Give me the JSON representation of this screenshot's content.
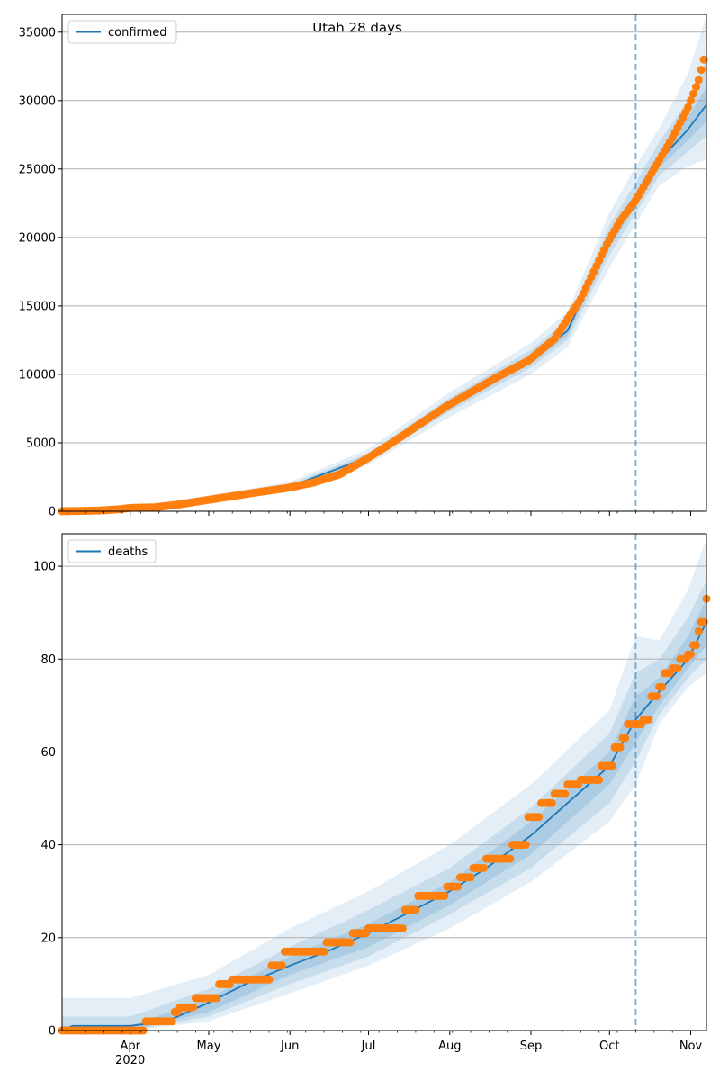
{
  "title": "Utah 28 days",
  "colors": {
    "line": "#1f77b4",
    "points": "#ff7f0e",
    "band": "#1f77b4",
    "grid": "#b0b0b0",
    "forecast_line": "#1f77b4"
  },
  "x_axis": {
    "month_ticks": [
      {
        "label": "Apr",
        "sub": "2020"
      },
      {
        "label": "May",
        "sub": ""
      },
      {
        "label": "Jun",
        "sub": ""
      },
      {
        "label": "Jul",
        "sub": ""
      },
      {
        "label": "Aug",
        "sub": ""
      },
      {
        "label": "Sep",
        "sub": ""
      },
      {
        "label": "Oct",
        "sub": ""
      },
      {
        "label": "Nov",
        "sub": ""
      }
    ],
    "start_date": "2020-03-06",
    "end_date": "2020-11-07",
    "forecast_start_date": "2020-10-11"
  },
  "chart_data": [
    {
      "type": "line",
      "legend": "confirmed",
      "legend_position": "upper-left",
      "grid": "horizontal",
      "ylim": [
        0,
        36300
      ],
      "yticks": [
        0,
        5000,
        10000,
        15000,
        20000,
        25000,
        30000,
        35000
      ],
      "observed_points": [
        [
          "2020-03-06",
          0
        ],
        [
          "2020-03-20",
          50
        ],
        [
          "2020-03-28",
          150
        ],
        [
          "2020-04-01",
          250
        ],
        [
          "2020-04-10",
          280
        ],
        [
          "2020-04-20",
          500
        ],
        [
          "2020-04-28",
          750
        ],
        [
          "2020-05-10",
          1100
        ],
        [
          "2020-05-20",
          1400
        ],
        [
          "2020-05-31",
          1700
        ],
        [
          "2020-06-10",
          2100
        ],
        [
          "2020-06-20",
          2700
        ],
        [
          "2020-06-30",
          3800
        ],
        [
          "2020-07-10",
          5000
        ],
        [
          "2020-07-20",
          6300
        ],
        [
          "2020-07-31",
          7700
        ],
        [
          "2020-08-10",
          8800
        ],
        [
          "2020-08-20",
          9900
        ],
        [
          "2020-08-31",
          11000
        ],
        [
          "2020-09-10",
          12600
        ],
        [
          "2020-09-20",
          15500
        ],
        [
          "2020-09-30",
          19500
        ],
        [
          "2020-10-05",
          21200
        ],
        [
          "2020-10-11",
          22700
        ],
        [
          "2020-10-18",
          25000
        ],
        [
          "2020-10-25",
          27300
        ],
        [
          "2020-10-31",
          29500
        ],
        [
          "2020-11-04",
          31500
        ],
        [
          "2020-11-06",
          33000
        ]
      ],
      "model_line": [
        [
          "2020-03-06",
          0
        ],
        [
          "2020-04-01",
          230
        ],
        [
          "2020-05-01",
          900
        ],
        [
          "2020-06-01",
          1800
        ],
        [
          "2020-07-01",
          3950
        ],
        [
          "2020-08-01",
          7800
        ],
        [
          "2020-09-01",
          11100
        ],
        [
          "2020-09-15",
          13200
        ],
        [
          "2020-10-01",
          19800
        ],
        [
          "2020-10-11",
          22800
        ],
        [
          "2020-10-20",
          25600
        ],
        [
          "2020-10-31",
          27900
        ],
        [
          "2020-11-07",
          29700
        ]
      ],
      "bands": [
        {
          "lower": [
            [
              "2020-03-06",
              0
            ],
            [
              "2020-04-01",
              150
            ],
            [
              "2020-05-01",
              700
            ],
            [
              "2020-06-01",
              1500
            ],
            [
              "2020-07-01",
              3400
            ],
            [
              "2020-08-01",
              6900
            ],
            [
              "2020-09-01",
              10000
            ],
            [
              "2020-09-15",
              12000
            ],
            [
              "2020-10-01",
              17800
            ],
            [
              "2020-10-11",
              21000
            ],
            [
              "2020-10-20",
              23800
            ],
            [
              "2020-10-31",
              25200
            ],
            [
              "2020-11-07",
              25700
            ]
          ],
          "upper": [
            [
              "2020-03-06",
              0
            ],
            [
              "2020-04-01",
              350
            ],
            [
              "2020-05-01",
              1150
            ],
            [
              "2020-06-01",
              2150
            ],
            [
              "2020-07-01",
              4550
            ],
            [
              "2020-08-01",
              8700
            ],
            [
              "2020-09-01",
              12300
            ],
            [
              "2020-09-15",
              14600
            ],
            [
              "2020-10-01",
              21800
            ],
            [
              "2020-10-11",
              25200
            ],
            [
              "2020-10-20",
              28000
            ],
            [
              "2020-10-31",
              32000
            ],
            [
              "2020-11-07",
              36200
            ]
          ]
        },
        {
          "lower": [
            [
              "2020-03-06",
              0
            ],
            [
              "2020-04-01",
              190
            ],
            [
              "2020-05-01",
              800
            ],
            [
              "2020-06-01",
              1650
            ],
            [
              "2020-07-01",
              3650
            ],
            [
              "2020-08-01",
              7300
            ],
            [
              "2020-09-01",
              10500
            ],
            [
              "2020-09-15",
              12500
            ],
            [
              "2020-10-01",
              18700
            ],
            [
              "2020-10-11",
              21800
            ],
            [
              "2020-10-20",
              24500
            ],
            [
              "2020-10-31",
              26300
            ],
            [
              "2020-11-07",
              27400
            ]
          ],
          "upper": [
            [
              "2020-03-06",
              0
            ],
            [
              "2020-04-01",
              290
            ],
            [
              "2020-05-01",
              1030
            ],
            [
              "2020-06-01",
              1980
            ],
            [
              "2020-07-01",
              4250
            ],
            [
              "2020-08-01",
              8300
            ],
            [
              "2020-09-01",
              11800
            ],
            [
              "2020-09-15",
              14000
            ],
            [
              "2020-10-01",
              20900
            ],
            [
              "2020-10-11",
              24000
            ],
            [
              "2020-10-20",
              27000
            ],
            [
              "2020-10-31",
              30000
            ],
            [
              "2020-11-07",
              33000
            ]
          ]
        },
        {
          "lower": [
            [
              "2020-03-06",
              0
            ],
            [
              "2020-04-01",
              215
            ],
            [
              "2020-05-01",
              860
            ],
            [
              "2020-06-01",
              1730
            ],
            [
              "2020-07-01",
              3800
            ],
            [
              "2020-08-01",
              7550
            ],
            [
              "2020-09-01",
              10800
            ],
            [
              "2020-09-15",
              12850
            ],
            [
              "2020-10-01",
              19300
            ],
            [
              "2020-10-11",
              22300
            ],
            [
              "2020-10-20",
              25100
            ],
            [
              "2020-10-31",
              27100
            ],
            [
              "2020-11-07",
              28500
            ]
          ],
          "upper": [
            [
              "2020-03-06",
              0
            ],
            [
              "2020-04-01",
              250
            ],
            [
              "2020-05-01",
              950
            ],
            [
              "2020-06-01",
              1880
            ],
            [
              "2020-07-01",
              4100
            ],
            [
              "2020-08-01",
              8050
            ],
            [
              "2020-09-01",
              11400
            ],
            [
              "2020-09-15",
              13550
            ],
            [
              "2020-10-01",
              20300
            ],
            [
              "2020-10-11",
              23300
            ],
            [
              "2020-10-20",
              26200
            ],
            [
              "2020-10-31",
              28800
            ],
            [
              "2020-11-07",
              31000
            ]
          ]
        }
      ]
    },
    {
      "type": "line",
      "legend": "deaths",
      "legend_position": "upper-left",
      "grid": "horizontal",
      "ylim": [
        0,
        107
      ],
      "yticks": [
        0,
        20,
        40,
        60,
        80,
        100
      ],
      "observed_points": [
        [
          "2020-03-06",
          0
        ],
        [
          "2020-04-05",
          0
        ],
        [
          "2020-04-07",
          2
        ],
        [
          "2020-04-15",
          2
        ],
        [
          "2020-04-18",
          4
        ],
        [
          "2020-04-20",
          5
        ],
        [
          "2020-04-26",
          7
        ],
        [
          "2020-05-01",
          7
        ],
        [
          "2020-05-05",
          10
        ],
        [
          "2020-05-10",
          11
        ],
        [
          "2020-05-20",
          11
        ],
        [
          "2020-05-25",
          14
        ],
        [
          "2020-05-30",
          17
        ],
        [
          "2020-06-10",
          17
        ],
        [
          "2020-06-15",
          19
        ],
        [
          "2020-06-25",
          21
        ],
        [
          "2020-07-01",
          22
        ],
        [
          "2020-07-10",
          22
        ],
        [
          "2020-07-15",
          26
        ],
        [
          "2020-07-20",
          29
        ],
        [
          "2020-07-31",
          31
        ],
        [
          "2020-08-05",
          33
        ],
        [
          "2020-08-10",
          35
        ],
        [
          "2020-08-15",
          37
        ],
        [
          "2020-08-20",
          37
        ],
        [
          "2020-08-25",
          40
        ],
        [
          "2020-08-31",
          46
        ],
        [
          "2020-09-05",
          49
        ],
        [
          "2020-09-10",
          51
        ],
        [
          "2020-09-15",
          53
        ],
        [
          "2020-09-20",
          54
        ],
        [
          "2020-09-25",
          54
        ],
        [
          "2020-09-28",
          57
        ],
        [
          "2020-10-01",
          57
        ],
        [
          "2020-10-03",
          61
        ],
        [
          "2020-10-06",
          63
        ],
        [
          "2020-10-08",
          66
        ],
        [
          "2020-10-11",
          66
        ],
        [
          "2020-10-14",
          67
        ],
        [
          "2020-10-17",
          72
        ],
        [
          "2020-10-20",
          74
        ],
        [
          "2020-10-22",
          77
        ],
        [
          "2020-10-25",
          78
        ],
        [
          "2020-10-28",
          80
        ],
        [
          "2020-10-31",
          81
        ],
        [
          "2020-11-02",
          83
        ],
        [
          "2020-11-04",
          86
        ],
        [
          "2020-11-05",
          88
        ],
        [
          "2020-11-07",
          93
        ]
      ],
      "model_line": [
        [
          "2020-03-06",
          0
        ],
        [
          "2020-03-10",
          1
        ],
        [
          "2020-04-01",
          1
        ],
        [
          "2020-04-15",
          2
        ],
        [
          "2020-05-01",
          6
        ],
        [
          "2020-05-15",
          10
        ],
        [
          "2020-06-01",
          14
        ],
        [
          "2020-06-15",
          17
        ],
        [
          "2020-07-01",
          21
        ],
        [
          "2020-07-15",
          25
        ],
        [
          "2020-08-01",
          30
        ],
        [
          "2020-08-15",
          35
        ],
        [
          "2020-09-01",
          42
        ],
        [
          "2020-09-15",
          49
        ],
        [
          "2020-10-01",
          57
        ],
        [
          "2020-10-11",
          67
        ],
        [
          "2020-10-20",
          73
        ],
        [
          "2020-10-31",
          80
        ],
        [
          "2020-11-07",
          88
        ]
      ],
      "bands": [
        {
          "lower": [
            [
              "2020-03-06",
              0
            ],
            [
              "2020-04-01",
              0
            ],
            [
              "2020-05-01",
              2
            ],
            [
              "2020-06-01",
              8
            ],
            [
              "2020-07-01",
              14
            ],
            [
              "2020-08-01",
              22
            ],
            [
              "2020-09-01",
              32
            ],
            [
              "2020-10-01",
              45
            ],
            [
              "2020-10-11",
              53
            ],
            [
              "2020-10-20",
              66
            ],
            [
              "2020-10-31",
              74
            ],
            [
              "2020-11-07",
              77
            ]
          ],
          "upper": [
            [
              "2020-03-06",
              7
            ],
            [
              "2020-04-01",
              7
            ],
            [
              "2020-05-01",
              12
            ],
            [
              "2020-06-01",
              22
            ],
            [
              "2020-07-01",
              30
            ],
            [
              "2020-08-01",
              40
            ],
            [
              "2020-09-01",
              53
            ],
            [
              "2020-10-01",
              69
            ],
            [
              "2020-10-11",
              85
            ],
            [
              "2020-10-20",
              84
            ],
            [
              "2020-10-31",
              95
            ],
            [
              "2020-11-07",
              106
            ]
          ]
        },
        {
          "lower": [
            [
              "2020-03-06",
              0
            ],
            [
              "2020-04-01",
              0
            ],
            [
              "2020-05-01",
              3
            ],
            [
              "2020-06-01",
              10
            ],
            [
              "2020-07-01",
              16
            ],
            [
              "2020-08-01",
              25
            ],
            [
              "2020-09-01",
              35
            ],
            [
              "2020-10-01",
              49
            ],
            [
              "2020-10-11",
              58
            ],
            [
              "2020-10-20",
              68
            ],
            [
              "2020-10-31",
              76
            ],
            [
              "2020-11-07",
              80
            ]
          ],
          "upper": [
            [
              "2020-03-06",
              3
            ],
            [
              "2020-04-01",
              3
            ],
            [
              "2020-05-01",
              9
            ],
            [
              "2020-06-01",
              18
            ],
            [
              "2020-07-01",
              26
            ],
            [
              "2020-08-01",
              35
            ],
            [
              "2020-09-01",
              48
            ],
            [
              "2020-10-01",
              64
            ],
            [
              "2020-10-11",
              77
            ],
            [
              "2020-10-20",
              80
            ],
            [
              "2020-10-31",
              89
            ],
            [
              "2020-11-07",
              97
            ]
          ]
        },
        {
          "lower": [
            [
              "2020-03-06",
              0
            ],
            [
              "2020-04-01",
              0
            ],
            [
              "2020-05-01",
              4
            ],
            [
              "2020-06-01",
              12
            ],
            [
              "2020-07-01",
              18
            ],
            [
              "2020-08-01",
              27
            ],
            [
              "2020-09-01",
              38
            ],
            [
              "2020-10-01",
              53
            ],
            [
              "2020-10-11",
              62
            ],
            [
              "2020-10-20",
              70
            ],
            [
              "2020-10-31",
              78
            ],
            [
              "2020-11-07",
              83
            ]
          ],
          "upper": [
            [
              "2020-03-06",
              1
            ],
            [
              "2020-04-01",
              1
            ],
            [
              "2020-05-01",
              7
            ],
            [
              "2020-06-01",
              16
            ],
            [
              "2020-07-01",
              23
            ],
            [
              "2020-08-01",
              32
            ],
            [
              "2020-09-01",
              45
            ],
            [
              "2020-10-01",
              60
            ],
            [
              "2020-10-11",
              72
            ],
            [
              "2020-10-20",
              76
            ],
            [
              "2020-10-31",
              85
            ],
            [
              "2020-11-07",
              93
            ]
          ]
        }
      ]
    }
  ]
}
